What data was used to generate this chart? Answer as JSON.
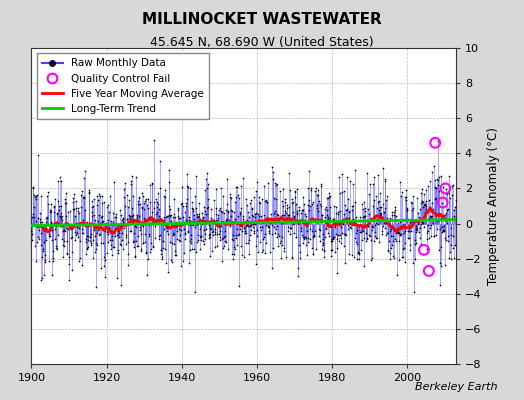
{
  "title": "MILLINOCKET WASTEWATER",
  "subtitle": "45.645 N, 68.690 W (United States)",
  "ylabel": "Temperature Anomaly (°C)",
  "watermark": "Berkeley Earth",
  "xlim": [
    1900,
    2013
  ],
  "ylim": [
    -8,
    10
  ],
  "yticks": [
    -8,
    -6,
    -4,
    -2,
    0,
    2,
    4,
    6,
    8,
    10
  ],
  "xticks": [
    1900,
    1920,
    1940,
    1960,
    1980,
    2000
  ],
  "fig_bg_color": "#d8d8d8",
  "plot_bg_color": "#ffffff",
  "raw_line_color": "#4444ff",
  "raw_dot_color": "#000000",
  "qc_fail_color": "#ff00ff",
  "moving_avg_color": "#ff0000",
  "trend_color": "#00cc00",
  "seed": 12345,
  "n_years": 113,
  "start_year": 1900,
  "trend_slope": 0.008,
  "trend_intercept": 0.05,
  "qc_fail_points": [
    {
      "year": 2007.5,
      "value": 4.6
    },
    {
      "year": 2009.5,
      "value": 1.2
    },
    {
      "year": 2010.2,
      "value": 2.0
    },
    {
      "year": 2004.5,
      "value": -1.5
    },
    {
      "year": 2005.8,
      "value": -2.7
    }
  ]
}
